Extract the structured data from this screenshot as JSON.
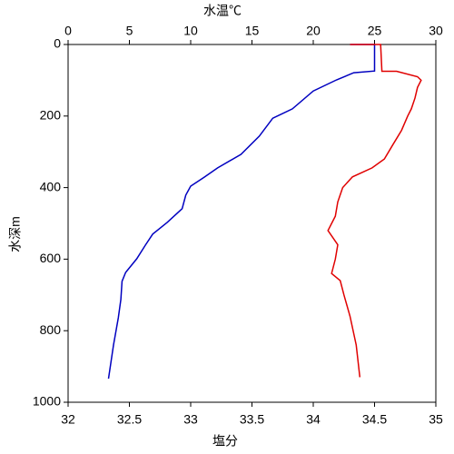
{
  "chart_data": {
    "type": "profile",
    "xlabel": "塩分",
    "x2label": "水温℃",
    "ylabel": "水深m",
    "xlim": [
      32,
      35
    ],
    "xticks": [
      32,
      32.5,
      33,
      33.5,
      34,
      34.5,
      35
    ],
    "x2lim": [
      0,
      30
    ],
    "x2ticks": [
      0,
      5,
      10,
      15,
      20,
      25,
      30
    ],
    "ylim": [
      0,
      1000
    ],
    "yticks": [
      0,
      200,
      400,
      600,
      800,
      1000
    ],
    "y_inverted": true,
    "series": [
      {
        "color": "#0000c0",
        "axis": "x2",
        "x": [
          23,
          25,
          25,
          23.3,
          21.9,
          20,
          18.3,
          16.7,
          15.6,
          14.1,
          12.2,
          11.1,
          10,
          9.6,
          9.3,
          8.1,
          6.9,
          6.3,
          5.6,
          4.7,
          4.4,
          4.3,
          4.1,
          3.7,
          3.3
        ],
        "y": [
          0,
          0,
          74,
          79,
          99,
          130,
          180,
          206,
          256,
          307,
          345,
          371,
          396,
          421,
          459,
          497,
          530,
          561,
          599,
          637,
          662,
          713,
          764,
          840,
          934
        ]
      },
      {
        "color": "#e00000",
        "axis": "x",
        "x": [
          34.3,
          34.55,
          34.56,
          34.68,
          34.85,
          34.88,
          34.85,
          34.83,
          34.8,
          34.77,
          34.72,
          34.65,
          34.58,
          34.48,
          34.32,
          34.24,
          34.2,
          34.18,
          34.12,
          34.2,
          34.18,
          34.15,
          34.22,
          34.25,
          34.3,
          34.35,
          34.38
        ],
        "y": [
          0,
          0,
          75,
          75,
          90,
          100,
          120,
          150,
          180,
          200,
          240,
          280,
          320,
          345,
          370,
          400,
          440,
          480,
          520,
          560,
          600,
          640,
          660,
          700,
          760,
          840,
          930
        ]
      }
    ]
  }
}
